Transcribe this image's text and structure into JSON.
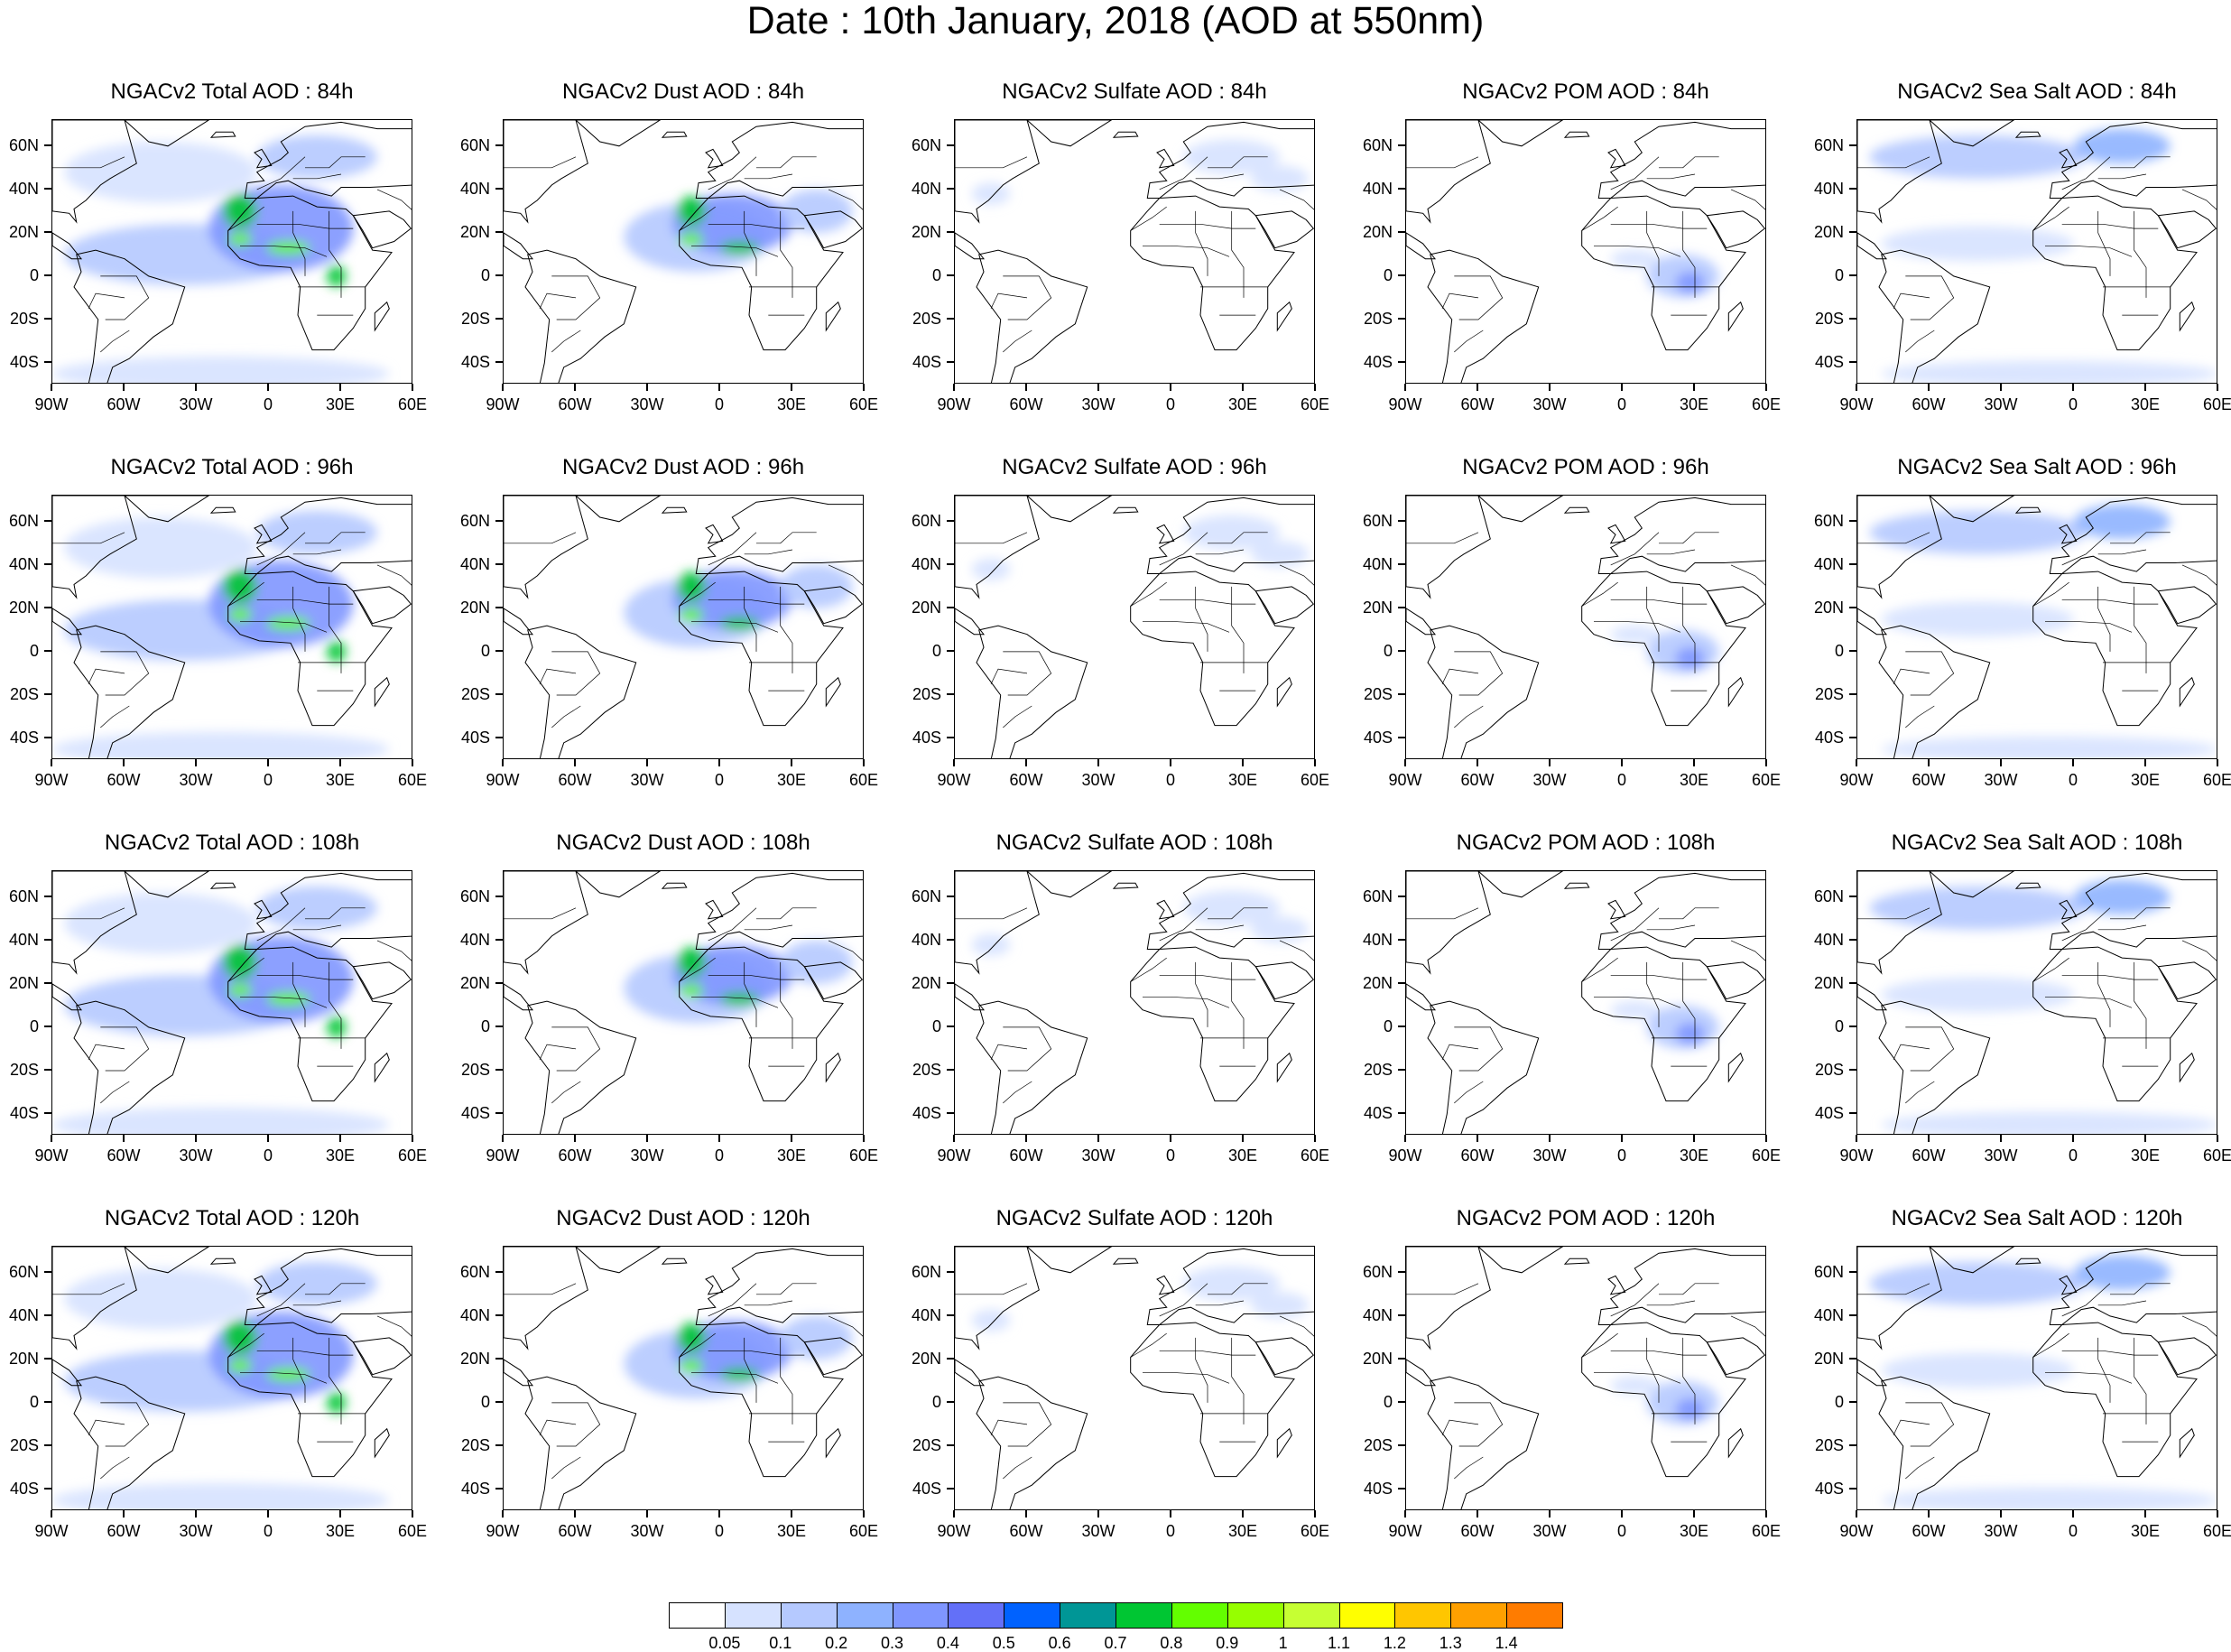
{
  "figure": {
    "title": "Date : 10th January, 2018 (AOD at 550nm)"
  },
  "axes": {
    "lat_labels": [
      "60N",
      "40N",
      "20N",
      "0",
      "20S",
      "40S"
    ],
    "lon_labels": [
      "90W",
      "60W",
      "30W",
      "0",
      "30E",
      "60E"
    ],
    "lat_range": [
      -50,
      72
    ],
    "lon_range": [
      -90,
      60
    ]
  },
  "panels": [
    {
      "title": "NGACv2 Total AOD : 84h",
      "species": "total",
      "hour": 84
    },
    {
      "title": "NGACv2 Dust AOD : 84h",
      "species": "dust",
      "hour": 84
    },
    {
      "title": "NGACv2 Sulfate AOD : 84h",
      "species": "sulfate",
      "hour": 84
    },
    {
      "title": "NGACv2 POM AOD : 84h",
      "species": "pom",
      "hour": 84
    },
    {
      "title": "NGACv2 Sea Salt AOD : 84h",
      "species": "seasalt",
      "hour": 84
    },
    {
      "title": "NGACv2 Total AOD : 96h",
      "species": "total",
      "hour": 96
    },
    {
      "title": "NGACv2 Dust AOD : 96h",
      "species": "dust",
      "hour": 96
    },
    {
      "title": "NGACv2 Sulfate AOD : 96h",
      "species": "sulfate",
      "hour": 96
    },
    {
      "title": "NGACv2 POM AOD : 96h",
      "species": "pom",
      "hour": 96
    },
    {
      "title": "NGACv2 Sea Salt AOD : 96h",
      "species": "seasalt",
      "hour": 96
    },
    {
      "title": "NGACv2 Total AOD : 108h",
      "species": "total",
      "hour": 108
    },
    {
      "title": "NGACv2 Dust AOD : 108h",
      "species": "dust",
      "hour": 108
    },
    {
      "title": "NGACv2 Sulfate AOD : 108h",
      "species": "sulfate",
      "hour": 108
    },
    {
      "title": "NGACv2 POM AOD : 108h",
      "species": "pom",
      "hour": 108
    },
    {
      "title": "NGACv2 Sea Salt AOD : 108h",
      "species": "seasalt",
      "hour": 108
    },
    {
      "title": "NGACv2 Total AOD : 120h",
      "species": "total",
      "hour": 120
    },
    {
      "title": "NGACv2 Dust AOD : 120h",
      "species": "dust",
      "hour": 120
    },
    {
      "title": "NGACv2 Sulfate AOD : 120h",
      "species": "sulfate",
      "hour": 120
    },
    {
      "title": "NGACv2 POM AOD : 120h",
      "species": "pom",
      "hour": 120
    },
    {
      "title": "NGACv2 Sea Salt  AOD : 120h",
      "species": "seasalt",
      "hour": 120
    }
  ],
  "colorbar": {
    "colors": [
      "#ffffff",
      "#d6e2ff",
      "#b5c9ff",
      "#8eb2ff",
      "#7f96ff",
      "#6370f8",
      "#0062ff",
      "#009696",
      "#00c633",
      "#63ff00",
      "#96ff00",
      "#c6ff33",
      "#ffff00",
      "#ffc600",
      "#ffa000",
      "#ff7c00",
      "#ff1900"
    ],
    "labels": [
      "0.05",
      "0.1",
      "0.2",
      "0.3",
      "0.4",
      "0.5",
      "0.6",
      "0.7",
      "0.8",
      "0.9",
      "1",
      "1.1",
      "1.2",
      "1.3",
      "1.4"
    ]
  },
  "map_features": {
    "land_shapes": [
      {
        "name": "north-america",
        "points": [
          [
            -90,
            72
          ],
          [
            -60,
            72
          ],
          [
            -55,
            52
          ],
          [
            -66,
            45
          ],
          [
            -70,
            42
          ],
          [
            -76,
            35
          ],
          [
            -81,
            31
          ],
          [
            -80,
            25
          ],
          [
            -83,
            29
          ],
          [
            -90,
            30
          ]
        ]
      },
      {
        "name": "greenland",
        "points": [
          [
            -60,
            72
          ],
          [
            -25,
            72
          ],
          [
            -42,
            60
          ],
          [
            -50,
            62
          ]
        ]
      },
      {
        "name": "central-america",
        "points": [
          [
            -90,
            20
          ],
          [
            -83,
            15
          ],
          [
            -78,
            8
          ],
          [
            -82,
            8
          ],
          [
            -90,
            14
          ]
        ]
      },
      {
        "name": "south-america",
        "points": [
          [
            -80,
            10
          ],
          [
            -72,
            12
          ],
          [
            -60,
            8
          ],
          [
            -50,
            0
          ],
          [
            -35,
            -5
          ],
          [
            -40,
            -22
          ],
          [
            -48,
            -28
          ],
          [
            -58,
            -38
          ],
          [
            -65,
            -42
          ],
          [
            -68,
            -52
          ],
          [
            -75,
            -50
          ],
          [
            -73,
            -40
          ],
          [
            -71,
            -20
          ],
          [
            -81,
            -5
          ],
          [
            -78,
            2
          ]
        ]
      },
      {
        "name": "africa",
        "points": [
          [
            -17,
            21
          ],
          [
            -10,
            30
          ],
          [
            -5,
            36
          ],
          [
            10,
            37
          ],
          [
            20,
            32
          ],
          [
            32,
            31
          ],
          [
            35,
            28
          ],
          [
            43,
            12
          ],
          [
            51,
            11
          ],
          [
            40,
            -5
          ],
          [
            40,
            -15
          ],
          [
            35,
            -24
          ],
          [
            27,
            -34
          ],
          [
            18,
            -34
          ],
          [
            12,
            -18
          ],
          [
            13,
            -5
          ],
          [
            9,
            4
          ],
          [
            -4,
            5
          ],
          [
            -12,
            8
          ],
          [
            -17,
            14
          ]
        ]
      },
      {
        "name": "europe",
        "points": [
          [
            -10,
            36
          ],
          [
            -9,
            43
          ],
          [
            -2,
            44
          ],
          [
            -5,
            48
          ],
          [
            5,
            54
          ],
          [
            8,
            57
          ],
          [
            5,
            62
          ],
          [
            15,
            69
          ],
          [
            30,
            71
          ],
          [
            45,
            68
          ],
          [
            60,
            68
          ],
          [
            60,
            42
          ],
          [
            42,
            41
          ],
          [
            30,
            41
          ],
          [
            26,
            37
          ],
          [
            15,
            40
          ],
          [
            8,
            44
          ],
          [
            3,
            43
          ],
          [
            -5,
            36
          ]
        ]
      },
      {
        "name": "uk",
        "points": [
          [
            -5,
            50
          ],
          [
            1,
            51
          ],
          [
            -1,
            55
          ],
          [
            -3,
            58.5
          ],
          [
            -6,
            57
          ],
          [
            -3,
            54
          ]
        ]
      },
      {
        "name": "iceland",
        "points": [
          [
            -24,
            64
          ],
          [
            -14,
            64.5
          ],
          [
            -15,
            66.5
          ],
          [
            -22,
            66.5
          ]
        ]
      },
      {
        "name": "arabia",
        "points": [
          [
            35,
            28
          ],
          [
            50,
            30
          ],
          [
            56,
            26
          ],
          [
            59,
            22
          ],
          [
            52,
            16
          ],
          [
            43,
            13
          ],
          [
            39,
            21
          ]
        ]
      },
      {
        "name": "madagascar",
        "points": [
          [
            44,
            -25
          ],
          [
            50,
            -15
          ],
          [
            49,
            -12
          ],
          [
            44,
            -17
          ]
        ]
      }
    ],
    "borders": [
      [
        [
          -17,
          21
        ],
        [
          -8,
          27
        ],
        [
          -2,
          32
        ]
      ],
      [
        [
          -5,
          24
        ],
        [
          12,
          24
        ],
        [
          25,
          22
        ],
        [
          35,
          22
        ]
      ],
      [
        [
          -12,
          14
        ],
        [
          0,
          14
        ],
        [
          15,
          13
        ],
        [
          24,
          9
        ]
      ],
      [
        [
          10,
          30
        ],
        [
          10,
          20
        ],
        [
          15,
          8
        ],
        [
          15,
          0
        ]
      ],
      [
        [
          25,
          30
        ],
        [
          25,
          12
        ],
        [
          30,
          4
        ],
        [
          30,
          -10
        ]
      ],
      [
        [
          12,
          -5
        ],
        [
          30,
          -5
        ],
        [
          40,
          -5
        ]
      ],
      [
        [
          20,
          -18
        ],
        [
          35,
          -18
        ]
      ],
      [
        [
          -70,
          0
        ],
        [
          -55,
          0
        ],
        [
          -50,
          -10
        ],
        [
          -60,
          -20
        ],
        [
          -68,
          -20
        ]
      ],
      [
        [
          -60,
          -10
        ],
        [
          -72,
          -8
        ],
        [
          -75,
          -15
        ]
      ],
      [
        [
          -58,
          -25
        ],
        [
          -65,
          -30
        ],
        [
          -70,
          -35
        ]
      ],
      [
        [
          15,
          50
        ],
        [
          25,
          50
        ],
        [
          30,
          55
        ],
        [
          40,
          55
        ]
      ],
      [
        [
          10,
          45
        ],
        [
          20,
          45
        ],
        [
          30,
          47
        ]
      ],
      [
        [
          -5,
          40
        ],
        [
          5,
          45
        ],
        [
          10,
          50
        ],
        [
          15,
          55
        ]
      ],
      [
        [
          45,
          40
        ],
        [
          55,
          35
        ],
        [
          60,
          30
        ]
      ],
      [
        [
          -90,
          50
        ],
        [
          -70,
          50
        ],
        [
          -60,
          55
        ]
      ]
    ]
  },
  "aod_fields": {
    "total": [
      {
        "name": "tropical-atlantic-band",
        "lon": -35,
        "lat": 10,
        "rx": 50,
        "ry": 14,
        "level": 2
      },
      {
        "name": "north-atlantic",
        "lon": -45,
        "lat": 48,
        "rx": 40,
        "ry": 14,
        "level": 1
      },
      {
        "name": "southern-ocean",
        "lon": -20,
        "lat": -45,
        "rx": 70,
        "ry": 8,
        "level": 1
      },
      {
        "name": "sahara-sahel",
        "lon": 5,
        "lat": 22,
        "rx": 30,
        "ry": 20,
        "level": 4
      },
      {
        "name": "west-sahara-core",
        "lon": -12,
        "lat": 30,
        "rx": 7,
        "ry": 8,
        "level": 8
      },
      {
        "name": "sahel-core-west",
        "lon": -12,
        "lat": 17,
        "rx": 5,
        "ry": 3,
        "level": 9
      },
      {
        "name": "sahel-core-central",
        "lon": 8,
        "lat": 13,
        "rx": 9,
        "ry": 3,
        "level": 9
      },
      {
        "name": "central-africa-core",
        "lon": 28,
        "lat": 0,
        "rx": 4,
        "ry": 5,
        "level": 8
      },
      {
        "name": "europe-haze",
        "lon": 20,
        "lat": 55,
        "rx": 25,
        "ry": 10,
        "level": 2
      }
    ],
    "dust": [
      {
        "name": "saharan-plume",
        "lon": -10,
        "lat": 18,
        "rx": 30,
        "ry": 16,
        "level": 2
      },
      {
        "name": "sahara",
        "lon": 5,
        "lat": 24,
        "rx": 25,
        "ry": 14,
        "level": 4
      },
      {
        "name": "west-sahara-core",
        "lon": -12,
        "lat": 30,
        "rx": 6,
        "ry": 7,
        "level": 8
      },
      {
        "name": "sahel-core-west",
        "lon": -12,
        "lat": 17,
        "rx": 5,
        "ry": 3,
        "level": 9
      },
      {
        "name": "sahel-core-central",
        "lon": 8,
        "lat": 13,
        "rx": 8,
        "ry": 3,
        "level": 8
      },
      {
        "name": "middle-east",
        "lon": 40,
        "lat": 30,
        "rx": 15,
        "ry": 10,
        "level": 2
      }
    ],
    "sulfate": [
      {
        "name": "europe",
        "lon": 25,
        "lat": 55,
        "rx": 20,
        "ry": 8,
        "level": 1
      },
      {
        "name": "east-med",
        "lon": 45,
        "lat": 45,
        "rx": 12,
        "ry": 6,
        "level": 1
      },
      {
        "name": "us-east-coast",
        "lon": -75,
        "lat": 38,
        "rx": 8,
        "ry": 5,
        "level": 1
      }
    ],
    "pom": [
      {
        "name": "central-africa-smoke",
        "lon": 25,
        "lat": 0,
        "rx": 15,
        "ry": 10,
        "level": 2
      },
      {
        "name": "central-africa-core",
        "lon": 28,
        "lat": -3,
        "rx": 6,
        "ry": 5,
        "level": 4
      },
      {
        "name": "west-africa-smoke",
        "lon": 5,
        "lat": 8,
        "rx": 10,
        "ry": 4,
        "level": 1
      }
    ],
    "seasalt": [
      {
        "name": "north-atlantic",
        "lon": -40,
        "lat": 55,
        "rx": 45,
        "ry": 10,
        "level": 2
      },
      {
        "name": "north-sea",
        "lon": 20,
        "lat": 60,
        "rx": 20,
        "ry": 8,
        "level": 3
      },
      {
        "name": "southern-ocean",
        "lon": -10,
        "lat": -45,
        "rx": 70,
        "ry": 6,
        "level": 1
      },
      {
        "name": "trade-winds",
        "lon": -40,
        "lat": 15,
        "rx": 40,
        "ry": 8,
        "level": 1
      }
    ]
  }
}
